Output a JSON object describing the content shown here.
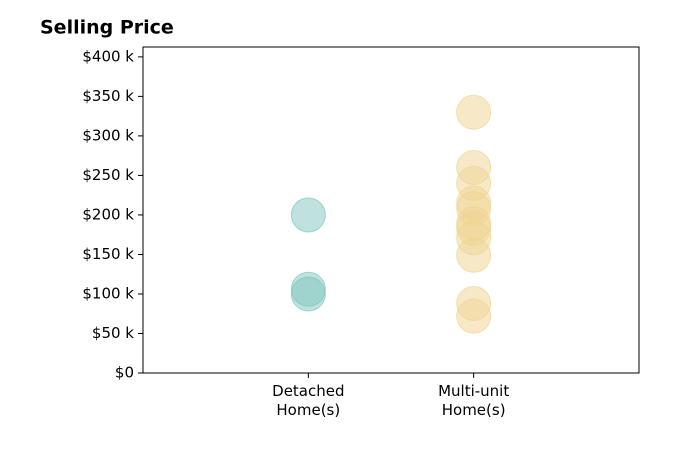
{
  "chart_data": {
    "type": "strip",
    "title": "Selling Price",
    "categories": [
      "Detached Home(s)",
      "Multi-unit Home(s)"
    ],
    "values": [
      [
        200,
        106,
        100
      ],
      [
        330,
        260,
        240,
        215,
        208,
        189,
        183,
        171,
        149,
        88,
        72
      ]
    ],
    "colors": [
      "#7fc6be",
      "#f0d491"
    ],
    "ylim": [
      0,
      412.5
    ],
    "yticks": [
      {
        "value": 0,
        "label": "$0"
      },
      {
        "value": 50,
        "label": "$50 k"
      },
      {
        "value": 100,
        "label": "$100 k"
      },
      {
        "value": 150,
        "label": "$150 k"
      },
      {
        "value": 200,
        "label": "$200 k"
      },
      {
        "value": 250,
        "label": "$250 k"
      },
      {
        "value": 300,
        "label": "$300 k"
      },
      {
        "value": 350,
        "label": "$350 k"
      },
      {
        "value": 400,
        "label": "$400 k"
      }
    ]
  }
}
